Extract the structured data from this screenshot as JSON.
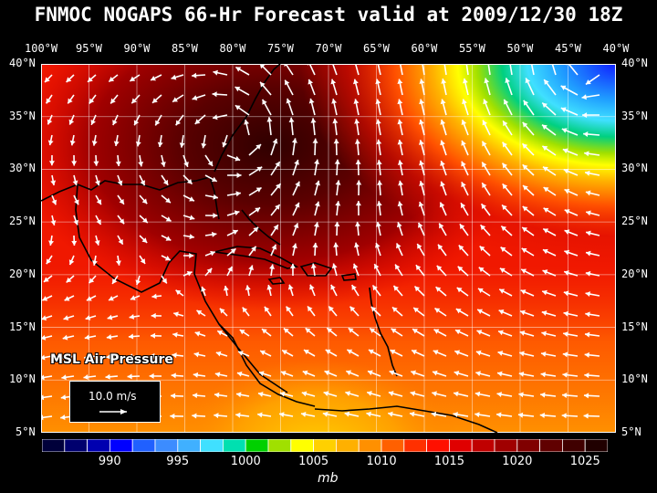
{
  "title": "FNMOC NOGAPS 66-Hr Forecast valid at 2009/12/30 18Z",
  "longitudes": [
    "100°W",
    "95°W",
    "90°W",
    "85°W",
    "80°W",
    "75°W",
    "70°W",
    "65°W",
    "60°W",
    "55°W",
    "50°W",
    "45°W",
    "40°W"
  ],
  "latitudes": [
    "40°N",
    "35°N",
    "30°N",
    "25°N",
    "20°N",
    "15°N",
    "10°N",
    "5°N"
  ],
  "field_label": "MSL Air Pressure",
  "scale_vector_label": "10.0 m/s",
  "colorbar": {
    "labels": [
      "990",
      "995",
      "1000",
      "1005",
      "1010",
      "1015",
      "1020",
      "1025"
    ],
    "unit": "mb",
    "colors": [
      "#00003a",
      "#00006e",
      "#0000b0",
      "#0000ff",
      "#2060ff",
      "#3c8cff",
      "#40b0ff",
      "#40e0ff",
      "#00e0b0",
      "#00d000",
      "#a0e000",
      "#ffff00",
      "#ffd000",
      "#ffb000",
      "#ff9000",
      "#ff6000",
      "#ff3000",
      "#ff1000",
      "#e00000",
      "#c00000",
      "#a00000",
      "#800000",
      "#600000",
      "#400000",
      "#200000"
    ]
  },
  "accent_colors": {
    "background": "#000000",
    "text": "#ffffff",
    "coast": "#000000",
    "wind_arrow": "#ffffff"
  }
}
